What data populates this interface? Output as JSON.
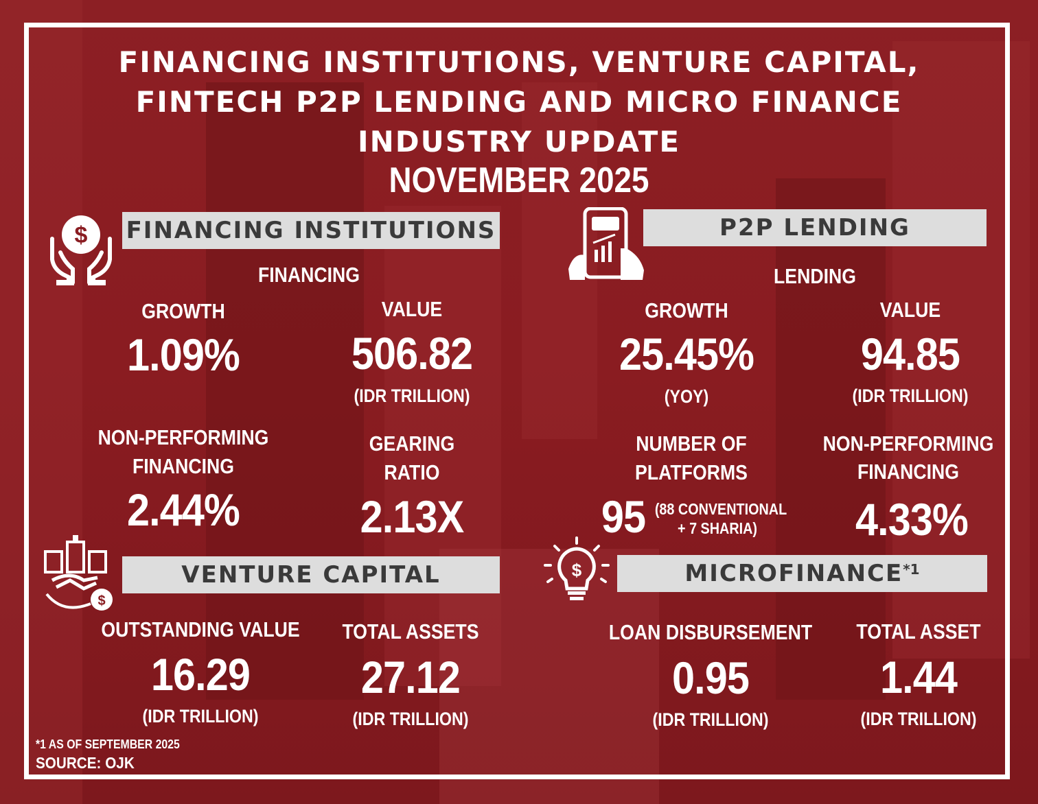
{
  "title": {
    "line1": "FINANCING INSTITUTIONS, VENTURE CAPITAL,",
    "line2": "FINTECH P2P LENDING AND MICRO FINANCE",
    "line3": "INDUSTRY UPDATE",
    "period": "NOVEMBER 2025"
  },
  "financing_institutions": {
    "header": "FINANCING INSTITUTIONS",
    "subheader": "FINANCING",
    "growth_label": "GROWTH",
    "growth_value": "1.09%",
    "value_label": "VALUE",
    "value_value": "506.82",
    "value_unit": "(IDR TRILLION)",
    "npf_label_1": "NON-PERFORMING",
    "npf_label_2": "FINANCING",
    "npf_value": "2.44%",
    "gearing_label_1": "GEARING",
    "gearing_label_2": "RATIO",
    "gearing_value": "2.13X"
  },
  "p2p_lending": {
    "header": "P2P LENDING",
    "subheader": "LENDING",
    "growth_label": "GROWTH",
    "growth_value": "25.45%",
    "growth_unit": "(YOY)",
    "value_label": "VALUE",
    "value_value": "94.85",
    "value_unit": "(IDR TRILLION)",
    "platforms_label_1": "NUMBER OF",
    "platforms_label_2": "PLATFORMS",
    "platforms_value": "95",
    "platforms_note_1": "(88 CONVENTIONAL",
    "platforms_note_2": "+  7 SHARIA)",
    "npf_label_1": "NON-PERFORMING",
    "npf_label_2": "FINANCING",
    "npf_value": "4.33%"
  },
  "venture_capital": {
    "header": "VENTURE CAPITAL",
    "outstanding_label": "OUTSTANDING VALUE",
    "outstanding_value": "16.29",
    "outstanding_unit": "(IDR TRILLION)",
    "assets_label": "TOTAL ASSETS",
    "assets_value": "27.12",
    "assets_unit": "(IDR TRILLION)"
  },
  "microfinance": {
    "header": "MICROFINANCE",
    "header_mark": "*1",
    "loan_label": "LOAN DISBURSEMENT",
    "loan_value": "0.95",
    "loan_unit": "(IDR TRILLION)",
    "asset_label": "TOTAL ASSET",
    "asset_value": "1.44",
    "asset_unit": "(IDR TRILLION)"
  },
  "footer": {
    "footnote": "*1 AS OF SEPTEMBER 2025",
    "source": "SOURCE: OJK"
  },
  "icons": {
    "financing": "money-hands-icon",
    "p2p": "phone-growth-icon",
    "venture": "handshake-money-icon",
    "microfinance": "lightbulb-dollar-icon"
  },
  "colors": {
    "background": "#8a1d22",
    "band": "#dddddd",
    "band_text": "#3a3a3a",
    "text": "#ffffff"
  }
}
